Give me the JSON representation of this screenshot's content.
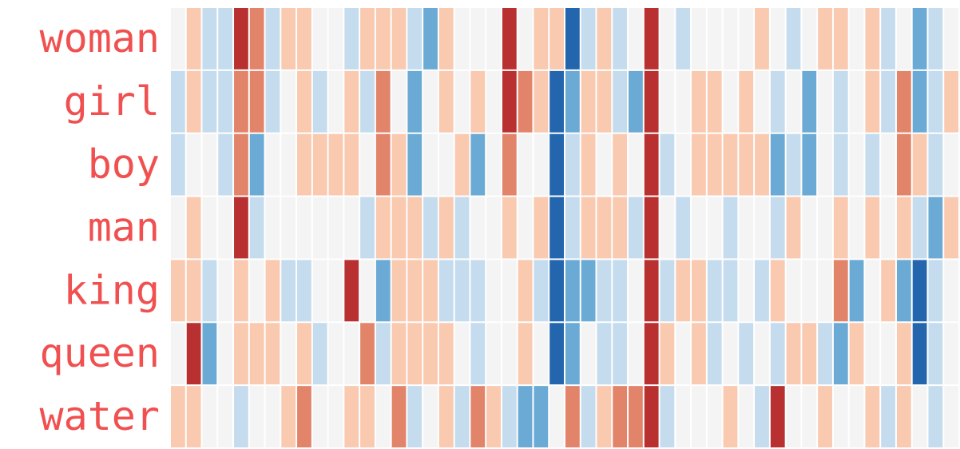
{
  "chart_data": {
    "type": "heatmap",
    "rows": [
      "woman",
      "girl",
      "boy",
      "man",
      "king",
      "queen",
      "water"
    ],
    "zlim": [
      -3,
      3
    ],
    "colorscale": [
      "#2366ad",
      "#6aaad4",
      "#c4dcee",
      "#f4f4f4",
      "#f9c9b0",
      "#e2846a",
      "#b8302f"
    ],
    "label_color": "#f05050",
    "z": [
      [
        0,
        1,
        -1,
        -1,
        3,
        2,
        -1,
        1,
        1,
        0,
        0,
        -1,
        1,
        1,
        1,
        -1,
        -2,
        1,
        0,
        0,
        0,
        3,
        0,
        1,
        1,
        -3,
        -1,
        1,
        -1,
        0,
        3,
        0,
        -1,
        0,
        0,
        0,
        0,
        1,
        0,
        -1,
        0,
        1,
        1,
        0,
        1,
        -1,
        0,
        -2,
        -1,
        0
      ],
      [
        -1,
        1,
        -1,
        -1,
        2,
        2,
        -1,
        0,
        1,
        -1,
        0,
        1,
        -1,
        2,
        0,
        -2,
        0,
        1,
        0,
        1,
        0,
        3,
        2,
        1,
        -3,
        -2,
        1,
        1,
        -1,
        -2,
        3,
        0,
        0,
        1,
        1,
        0,
        1,
        0,
        -1,
        0,
        -2,
        0,
        -1,
        0,
        1,
        -1,
        2,
        -2,
        -1,
        1
      ],
      [
        -1,
        0,
        0,
        -1,
        2,
        -2,
        0,
        0,
        1,
        1,
        1,
        1,
        0,
        2,
        1,
        -2,
        0,
        0,
        1,
        -2,
        0,
        2,
        0,
        0,
        -3,
        -1,
        1,
        0,
        1,
        0,
        3,
        -1,
        0,
        1,
        1,
        1,
        1,
        1,
        -2,
        -1,
        -2,
        0,
        -1,
        0,
        -1,
        0,
        2,
        1,
        -1,
        0
      ],
      [
        0,
        1,
        0,
        0,
        3,
        -1,
        0,
        0,
        0,
        0,
        0,
        0,
        -1,
        1,
        1,
        1,
        -1,
        1,
        -1,
        0,
        0,
        1,
        0,
        1,
        -3,
        -1,
        1,
        1,
        1,
        -1,
        3,
        0,
        -1,
        0,
        0,
        -1,
        0,
        0,
        -1,
        1,
        0,
        0,
        1,
        0,
        1,
        0,
        1,
        -1,
        -2,
        1
      ],
      [
        1,
        1,
        -1,
        0,
        1,
        0,
        1,
        -1,
        -1,
        0,
        0,
        3,
        0,
        -2,
        1,
        1,
        1,
        -1,
        -1,
        -1,
        0,
        0,
        1,
        -1,
        -3,
        -2,
        -2,
        -1,
        -1,
        0,
        3,
        -1,
        1,
        1,
        -1,
        -1,
        0,
        -1,
        1,
        0,
        0,
        0,
        2,
        -2,
        0,
        1,
        -2,
        -3,
        -1,
        0
      ],
      [
        0,
        3,
        -2,
        0,
        1,
        1,
        1,
        0,
        1,
        -1,
        0,
        0,
        2,
        -1,
        1,
        1,
        1,
        1,
        0,
        -1,
        0,
        0,
        1,
        0,
        -3,
        -2,
        0,
        -1,
        -1,
        0,
        3,
        1,
        0,
        1,
        -1,
        0,
        -1,
        0,
        -1,
        1,
        1,
        -1,
        -2,
        1,
        0,
        0,
        1,
        -3,
        -1,
        0
      ],
      [
        1,
        1,
        0,
        0,
        -1,
        0,
        0,
        1,
        2,
        0,
        0,
        1,
        1,
        0,
        2,
        -1,
        0,
        1,
        -1,
        2,
        1,
        -1,
        -2,
        -2,
        0,
        2,
        -1,
        1,
        2,
        2,
        3,
        -1,
        0,
        0,
        0,
        1,
        0,
        -1,
        3,
        0,
        0,
        1,
        0,
        0,
        1,
        -1,
        1,
        0,
        -1,
        0
      ]
    ]
  }
}
